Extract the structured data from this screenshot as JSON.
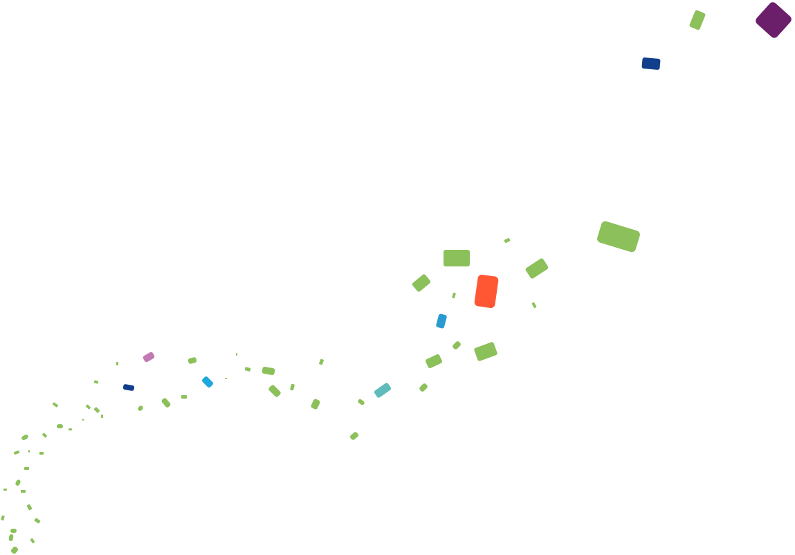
{
  "colors": {
    "green": "#8BC05A",
    "purple": "#6B1F6B",
    "navy": "#123F8C",
    "red": "#FF5733",
    "blue": "#2A9BD0",
    "cyan": "#1FA8DD",
    "teal": "#5FBCBA",
    "pink": "#C27AB5"
  }
}
